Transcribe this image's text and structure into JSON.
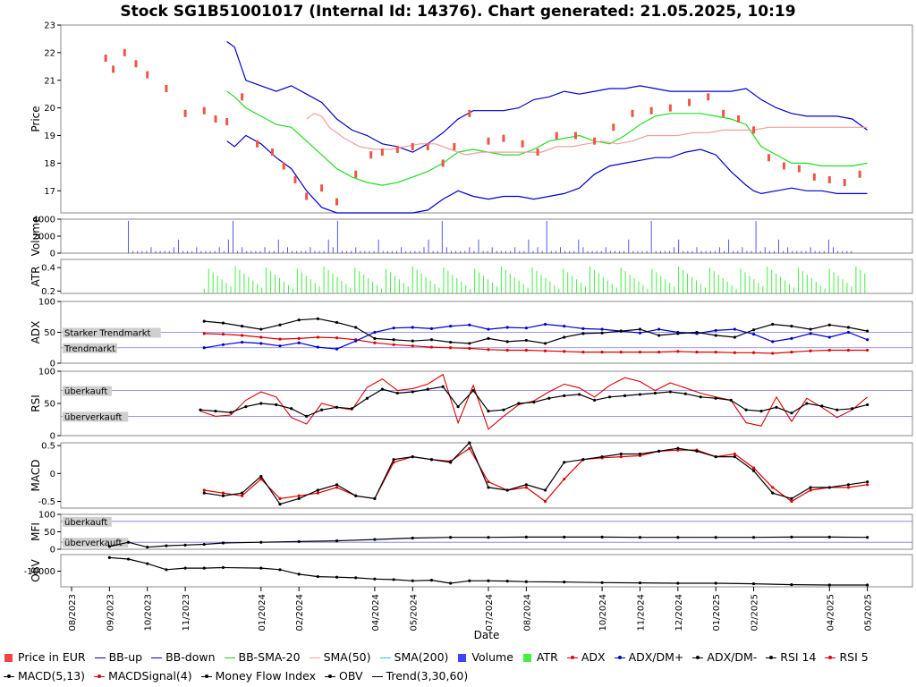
{
  "title": "Stock SG1B51001017 (Internal Id: 14376). Chart generated: 21.05.2025, 10:19",
  "x_axis_label": "Date",
  "x_ticks": [
    "08/2023",
    "09/2023",
    "10/2023",
    "11/2023",
    "01/2024",
    "02/2024",
    "04/2024",
    "05/2024",
    "07/2024",
    "08/2024",
    "10/2024",
    "11/2024",
    "12/2024",
    "01/2025",
    "02/2025",
    "04/2025",
    "05/2025"
  ],
  "x_tick_months": [
    0,
    1,
    2,
    3,
    5,
    6,
    8,
    9,
    11,
    12,
    14,
    15,
    16,
    17,
    18,
    20,
    21
  ],
  "panels": {
    "price": {
      "label": "Price",
      "ticks": [
        "17",
        "18",
        "19",
        "20",
        "21",
        "22",
        "23"
      ]
    },
    "volume": {
      "label": "Volume",
      "ticks": [
        "0",
        "2000",
        "4000"
      ]
    },
    "atr": {
      "label": "ATR",
      "ticks": [
        "0.2",
        "0.4"
      ]
    },
    "adx": {
      "label": "ADX",
      "ticks": [
        "0",
        "50",
        "100"
      ],
      "ref_labels": [
        "Starker Trendmarkt",
        "Trendmarkt"
      ]
    },
    "rsi": {
      "label": "RSI",
      "ticks": [
        "0",
        "50",
        "100"
      ],
      "ref_labels": [
        "überkauft",
        "überverkauft"
      ]
    },
    "macd": {
      "label": "MACD",
      "ticks": [
        "-0.5",
        "0",
        "0.5"
      ]
    },
    "mfi": {
      "label": "MFI",
      "ticks": [
        "0",
        "50",
        "100"
      ],
      "ref_labels": [
        "überkauft",
        "überverkauft"
      ]
    },
    "obv": {
      "label": "OBV",
      "ticks": [
        "-10000"
      ]
    }
  },
  "legend": [
    {
      "label": "Price in EUR",
      "color": "#ee4444",
      "symbol": "box"
    },
    {
      "label": "BB-up",
      "color": "#0000cc",
      "symbol": "line"
    },
    {
      "label": "BB-down",
      "color": "#0000cc",
      "symbol": "line"
    },
    {
      "label": "BB-SMA-20",
      "color": "#22cc22",
      "symbol": "line"
    },
    {
      "label": "SMA(50)",
      "color": "#f0a0a0",
      "symbol": "line"
    },
    {
      "label": "SMA(200)",
      "color": "#22cccc",
      "symbol": "line"
    },
    {
      "label": "Volume",
      "color": "#4444ee",
      "symbol": "box"
    },
    {
      "label": "ATR",
      "color": "#44ee44",
      "symbol": "box"
    },
    {
      "label": "ADX",
      "color": "#dd0000",
      "symbol": "dotline"
    },
    {
      "label": "ADX/DM+",
      "color": "#0000cc",
      "symbol": "dotline"
    },
    {
      "label": "ADX/DM-",
      "color": "#000000",
      "symbol": "dotline"
    },
    {
      "label": "RSI 14",
      "color": "#000000",
      "symbol": "dotline"
    },
    {
      "label": "RSI 5",
      "color": "#dd0000",
      "symbol": "dotline"
    },
    {
      "label": "MACD(5,13)",
      "color": "#000000",
      "symbol": "dotline"
    },
    {
      "label": "MACDSignal(4)",
      "color": "#dd0000",
      "symbol": "dotline"
    },
    {
      "label": "Money Flow Index",
      "color": "#000000",
      "symbol": "dotline"
    },
    {
      "label": "OBV",
      "color": "#000000",
      "symbol": "dotline"
    },
    {
      "label": "Trend(3,30,60)",
      "color": "#000000",
      "symbol": "line"
    }
  ],
  "chart_data": {
    "type": "line",
    "title": "Stock SG1B51001017 (Internal Id: 14376). Chart generated: 21.05.2025, 10:19",
    "xlabel": "Date",
    "x_months": [
      0,
      1,
      2,
      3,
      4,
      5,
      6,
      7,
      8,
      9,
      10,
      11,
      12,
      13,
      14,
      15,
      16,
      17,
      18,
      19,
      20,
      21
    ],
    "x_start": "08/2023",
    "series": [
      {
        "name": "Price in EUR",
        "panel": "price",
        "x": [
          0.9,
          1.1,
          1.4,
          1.7,
          2.0,
          2.5,
          3.0,
          3.5,
          3.8,
          4.1,
          4.5,
          4.9,
          5.3,
          5.6,
          5.9,
          6.2,
          6.6,
          7.0,
          7.5,
          7.9,
          8.2,
          8.6,
          9.0,
          9.4,
          9.8,
          10.1,
          10.5,
          11.0,
          11.4,
          11.9,
          12.3,
          12.8,
          13.3,
          13.8,
          14.3,
          14.8,
          15.3,
          15.8,
          16.3,
          16.8,
          17.2,
          17.6,
          18.0,
          18.4,
          18.8,
          19.2,
          19.6,
          20.0,
          20.4,
          20.8
        ],
        "values": [
          21.8,
          21.4,
          22.0,
          21.6,
          21.2,
          20.7,
          19.8,
          19.9,
          19.6,
          19.5,
          20.4,
          18.7,
          18.4,
          17.9,
          17.4,
          16.8,
          17.1,
          16.6,
          17.6,
          18.3,
          18.4,
          18.5,
          18.6,
          18.6,
          18.0,
          18.6,
          19.8,
          18.8,
          18.9,
          18.7,
          18.4,
          19.0,
          19.0,
          18.8,
          19.3,
          19.8,
          19.9,
          20.0,
          20.2,
          20.4,
          19.8,
          19.6,
          19.2,
          18.2,
          17.9,
          17.8,
          17.5,
          17.4,
          17.3,
          17.6
        ]
      },
      {
        "name": "BB-up",
        "panel": "price",
        "x": [
          4.1,
          4.3,
          4.6,
          5.0,
          5.4,
          5.8,
          6.2,
          6.6,
          7.0,
          7.4,
          7.8,
          8.2,
          8.6,
          9.0,
          9.4,
          9.8,
          10.2,
          10.6,
          11.0,
          11.4,
          11.8,
          12.2,
          12.6,
          13.0,
          13.4,
          13.8,
          14.2,
          14.6,
          15.0,
          15.4,
          15.8,
          16.2,
          16.6,
          17.0,
          17.4,
          17.8,
          18.0,
          18.2,
          18.6,
          19.0,
          19.4,
          19.8,
          20.2,
          20.6,
          21.0
        ],
        "values": [
          22.4,
          22.2,
          21.0,
          20.8,
          20.6,
          20.8,
          20.5,
          20.2,
          19.6,
          19.2,
          19.0,
          18.7,
          18.6,
          18.4,
          18.7,
          19.1,
          19.6,
          19.9,
          19.9,
          19.9,
          20.0,
          20.3,
          20.4,
          20.6,
          20.5,
          20.6,
          20.7,
          20.7,
          20.8,
          20.7,
          20.6,
          20.6,
          20.6,
          20.6,
          20.6,
          20.7,
          20.5,
          20.3,
          20.0,
          19.8,
          19.7,
          19.7,
          19.7,
          19.6,
          19.2
        ]
      },
      {
        "name": "BB-SMA-20",
        "panel": "price",
        "x": [
          4.1,
          4.3,
          4.6,
          5.0,
          5.4,
          5.8,
          6.2,
          6.6,
          7.0,
          7.4,
          7.8,
          8.2,
          8.6,
          9.0,
          9.4,
          9.8,
          10.2,
          10.6,
          11.0,
          11.4,
          11.8,
          12.2,
          12.6,
          13.0,
          13.4,
          13.8,
          14.2,
          14.6,
          15.0,
          15.4,
          15.8,
          16.2,
          16.6,
          17.0,
          17.4,
          17.8,
          18.0,
          18.2,
          18.6,
          19.0,
          19.4,
          19.8,
          20.2,
          20.6,
          21.0
        ],
        "values": [
          20.6,
          20.4,
          20.0,
          19.7,
          19.4,
          19.3,
          18.8,
          18.3,
          17.8,
          17.5,
          17.3,
          17.2,
          17.3,
          17.5,
          17.7,
          18.0,
          18.4,
          18.5,
          18.4,
          18.3,
          18.3,
          18.5,
          18.8,
          18.9,
          19.0,
          18.8,
          18.7,
          19.0,
          19.4,
          19.7,
          19.8,
          19.8,
          19.8,
          19.7,
          19.6,
          19.4,
          19.0,
          18.6,
          18.3,
          18.0,
          18.0,
          17.9,
          17.9,
          17.9,
          18.0
        ]
      },
      {
        "name": "BB-down",
        "panel": "price",
        "x": [
          4.1,
          4.3,
          4.6,
          5.0,
          5.4,
          5.8,
          6.2,
          6.6,
          7.0,
          7.4,
          7.8,
          8.2,
          8.6,
          9.0,
          9.4,
          9.8,
          10.2,
          10.6,
          11.0,
          11.4,
          11.8,
          12.2,
          12.6,
          13.0,
          13.4,
          13.8,
          14.2,
          14.6,
          15.0,
          15.4,
          15.8,
          16.2,
          16.6,
          17.0,
          17.4,
          17.8,
          18.0,
          18.2,
          18.6,
          19.0,
          19.4,
          19.8,
          20.2,
          20.6,
          21.0
        ],
        "values": [
          18.8,
          18.6,
          19.0,
          18.7,
          18.2,
          17.8,
          17.0,
          16.4,
          16.0,
          15.6,
          15.4,
          15.5,
          15.8,
          16.0,
          16.3,
          16.7,
          17.0,
          16.8,
          16.7,
          16.8,
          16.8,
          16.7,
          16.8,
          16.9,
          17.1,
          17.6,
          17.9,
          18.0,
          18.1,
          18.2,
          18.2,
          18.4,
          18.5,
          18.3,
          17.7,
          17.2,
          17.0,
          16.9,
          17.0,
          17.1,
          17.0,
          17.0,
          16.9,
          16.9,
          16.9
        ]
      },
      {
        "name": "SMA(50)",
        "panel": "price",
        "x": [
          6.2,
          6.4,
          6.6,
          6.8,
          7.2,
          7.6,
          8.0,
          8.4,
          8.8,
          9.2,
          9.6,
          10.0,
          10.4,
          10.8,
          11.2,
          11.6,
          12.0,
          12.4,
          12.8,
          13.2,
          13.6,
          14.0,
          14.4,
          14.8,
          15.2,
          15.6,
          16.0,
          16.4,
          16.8,
          17.2,
          17.6,
          18.0,
          18.4,
          18.8,
          19.2,
          19.6,
          20.0,
          20.4,
          20.8,
          21.0
        ],
        "values": [
          19.6,
          19.8,
          19.7,
          19.3,
          18.9,
          18.6,
          18.5,
          18.5,
          18.6,
          18.7,
          18.7,
          18.5,
          18.3,
          18.4,
          18.4,
          18.4,
          18.4,
          18.4,
          18.6,
          18.6,
          18.7,
          18.8,
          18.7,
          18.8,
          19.0,
          19.0,
          19.0,
          19.1,
          19.1,
          19.2,
          19.2,
          19.2,
          19.3,
          19.3,
          19.3,
          19.3,
          19.3,
          19.3,
          19.3,
          19.3
        ]
      }
    ],
    "volume_max": 4000,
    "atr_range": [
      0.2,
      0.45
    ],
    "adx_series": {
      "x": [
        3.5,
        4.0,
        4.5,
        5.0,
        5.5,
        6.0,
        6.5,
        7.0,
        7.5,
        8.0,
        8.5,
        9.0,
        9.5,
        10.0,
        10.5,
        11.0,
        11.5,
        12.0,
        12.5,
        13.0,
        13.5,
        14.0,
        14.5,
        15.0,
        15.5,
        16.0,
        16.5,
        17.0,
        17.5,
        18.0,
        18.5,
        19.0,
        19.5,
        20.0,
        20.5,
        21.0
      ],
      "adx": [
        48,
        47,
        45,
        42,
        39,
        40,
        42,
        41,
        38,
        33,
        30,
        28,
        26,
        25,
        24,
        22,
        21,
        21,
        20,
        19,
        18,
        18,
        18,
        18,
        18,
        19,
        18,
        18,
        17,
        17,
        16,
        18,
        20,
        21,
        21,
        21
      ],
      "dm_plus": [
        25,
        30,
        34,
        32,
        28,
        33,
        26,
        23,
        36,
        50,
        57,
        58,
        56,
        60,
        62,
        55,
        58,
        57,
        63,
        60,
        56,
        55,
        52,
        49,
        55,
        50,
        48,
        53,
        55,
        47,
        35,
        40,
        48,
        42,
        50,
        38
      ],
      "dm_minus": [
        68,
        65,
        60,
        55,
        62,
        70,
        72,
        66,
        58,
        40,
        38,
        36,
        38,
        34,
        32,
        40,
        35,
        37,
        32,
        42,
        48,
        49,
        52,
        55,
        45,
        48,
        50,
        45,
        42,
        54,
        63,
        60,
        55,
        62,
        58,
        52
      ]
    },
    "rsi_series": {
      "x": [
        3.4,
        3.8,
        4.2,
        4.6,
        5.0,
        5.4,
        5.8,
        6.2,
        6.6,
        7.0,
        7.4,
        7.8,
        8.2,
        8.6,
        9.0,
        9.4,
        9.8,
        10.2,
        10.6,
        11.0,
        11.4,
        11.8,
        12.2,
        12.6,
        13.0,
        13.4,
        13.8,
        14.2,
        14.6,
        15.0,
        15.4,
        15.8,
        16.2,
        16.6,
        17.0,
        17.4,
        17.8,
        18.2,
        18.6,
        19.0,
        19.4,
        19.8,
        20.2,
        20.6,
        21.0
      ],
      "rsi14": [
        40,
        38,
        36,
        45,
        50,
        48,
        42,
        30,
        40,
        44,
        42,
        58,
        72,
        66,
        68,
        72,
        76,
        45,
        70,
        38,
        40,
        50,
        52,
        58,
        62,
        64,
        55,
        60,
        62,
        64,
        66,
        68,
        65,
        60,
        58,
        55,
        40,
        38,
        44,
        35,
        50,
        46,
        40,
        42,
        48
      ],
      "rsi5": [
        38,
        30,
        32,
        55,
        68,
        60,
        28,
        18,
        50,
        44,
        40,
        75,
        88,
        70,
        73,
        80,
        95,
        20,
        78,
        10,
        30,
        48,
        54,
        68,
        80,
        74,
        60,
        78,
        90,
        84,
        70,
        82,
        74,
        66,
        60,
        55,
        20,
        15,
        60,
        22,
        58,
        44,
        28,
        40,
        60
      ]
    },
    "macd_series": {
      "x": [
        3.5,
        4.0,
        4.5,
        5.0,
        5.5,
        6.0,
        6.5,
        7.0,
        7.5,
        8.0,
        8.5,
        9.0,
        9.5,
        10.0,
        10.5,
        11.0,
        11.5,
        12.0,
        12.5,
        13.0,
        13.5,
        14.0,
        14.5,
        15.0,
        15.5,
        16.0,
        16.5,
        17.0,
        17.5,
        18.0,
        18.5,
        19.0,
        19.5,
        20.0,
        20.5,
        21.0
      ],
      "macd": [
        -0.35,
        -0.4,
        -0.35,
        -0.05,
        -0.55,
        -0.45,
        -0.3,
        -0.2,
        -0.4,
        -0.45,
        0.25,
        0.3,
        0.25,
        0.2,
        0.55,
        -0.25,
        -0.3,
        -0.2,
        -0.3,
        0.2,
        0.25,
        0.3,
        0.35,
        0.35,
        0.4,
        0.45,
        0.4,
        0.3,
        0.3,
        0.05,
        -0.35,
        -0.45,
        -0.25,
        -0.25,
        -0.2,
        -0.15
      ],
      "signal": [
        -0.3,
        -0.35,
        -0.4,
        -0.1,
        -0.45,
        -0.4,
        -0.35,
        -0.25,
        -0.4,
        -0.45,
        0.2,
        0.3,
        0.25,
        0.22,
        0.45,
        -0.15,
        -0.3,
        -0.25,
        -0.5,
        -0.1,
        0.25,
        0.28,
        0.3,
        0.32,
        0.4,
        0.42,
        0.42,
        0.3,
        0.35,
        0.1,
        -0.25,
        -0.5,
        -0.3,
        -0.25,
        -0.25,
        -0.2
      ]
    },
    "mfi_series": {
      "x": [
        1.0,
        1.5,
        2.0,
        2.5,
        3.0,
        3.5,
        4.0,
        5.0,
        6.0,
        7.0,
        8.0,
        9.0,
        10.0,
        11.0,
        12.0,
        13.0,
        14.0,
        15.0,
        16.0,
        17.0,
        18.0,
        19.0,
        20.0,
        21.0
      ],
      "values": [
        8,
        20,
        6,
        10,
        12,
        14,
        18,
        20,
        22,
        24,
        28,
        32,
        34,
        34,
        35,
        35,
        35,
        34,
        34,
        34,
        34,
        35,
        35,
        34
      ]
    },
    "obv_series": {
      "x": [
        1.0,
        1.5,
        2.0,
        2.5,
        3.0,
        3.5,
        4.0,
        5.0,
        5.5,
        6.0,
        6.5,
        7.0,
        7.5,
        8.0,
        8.5,
        9.0,
        9.5,
        10.0,
        10.5,
        11.0,
        11.5,
        12.0,
        13.0,
        14.0,
        15.0,
        16.0,
        17.0,
        18.0,
        19.0,
        20.0,
        21.0
      ],
      "values": [
        -5500,
        -6000,
        -7500,
        -9500,
        -9000,
        -9000,
        -8800,
        -9000,
        -9500,
        -11000,
        -11800,
        -12000,
        -12200,
        -12600,
        -12800,
        -13200,
        -13000,
        -14000,
        -13200,
        -13200,
        -13300,
        -13500,
        -13600,
        -13800,
        -13900,
        -14000,
        -14000,
        -14200,
        -14500,
        -14600,
        -14600
      ]
    }
  }
}
